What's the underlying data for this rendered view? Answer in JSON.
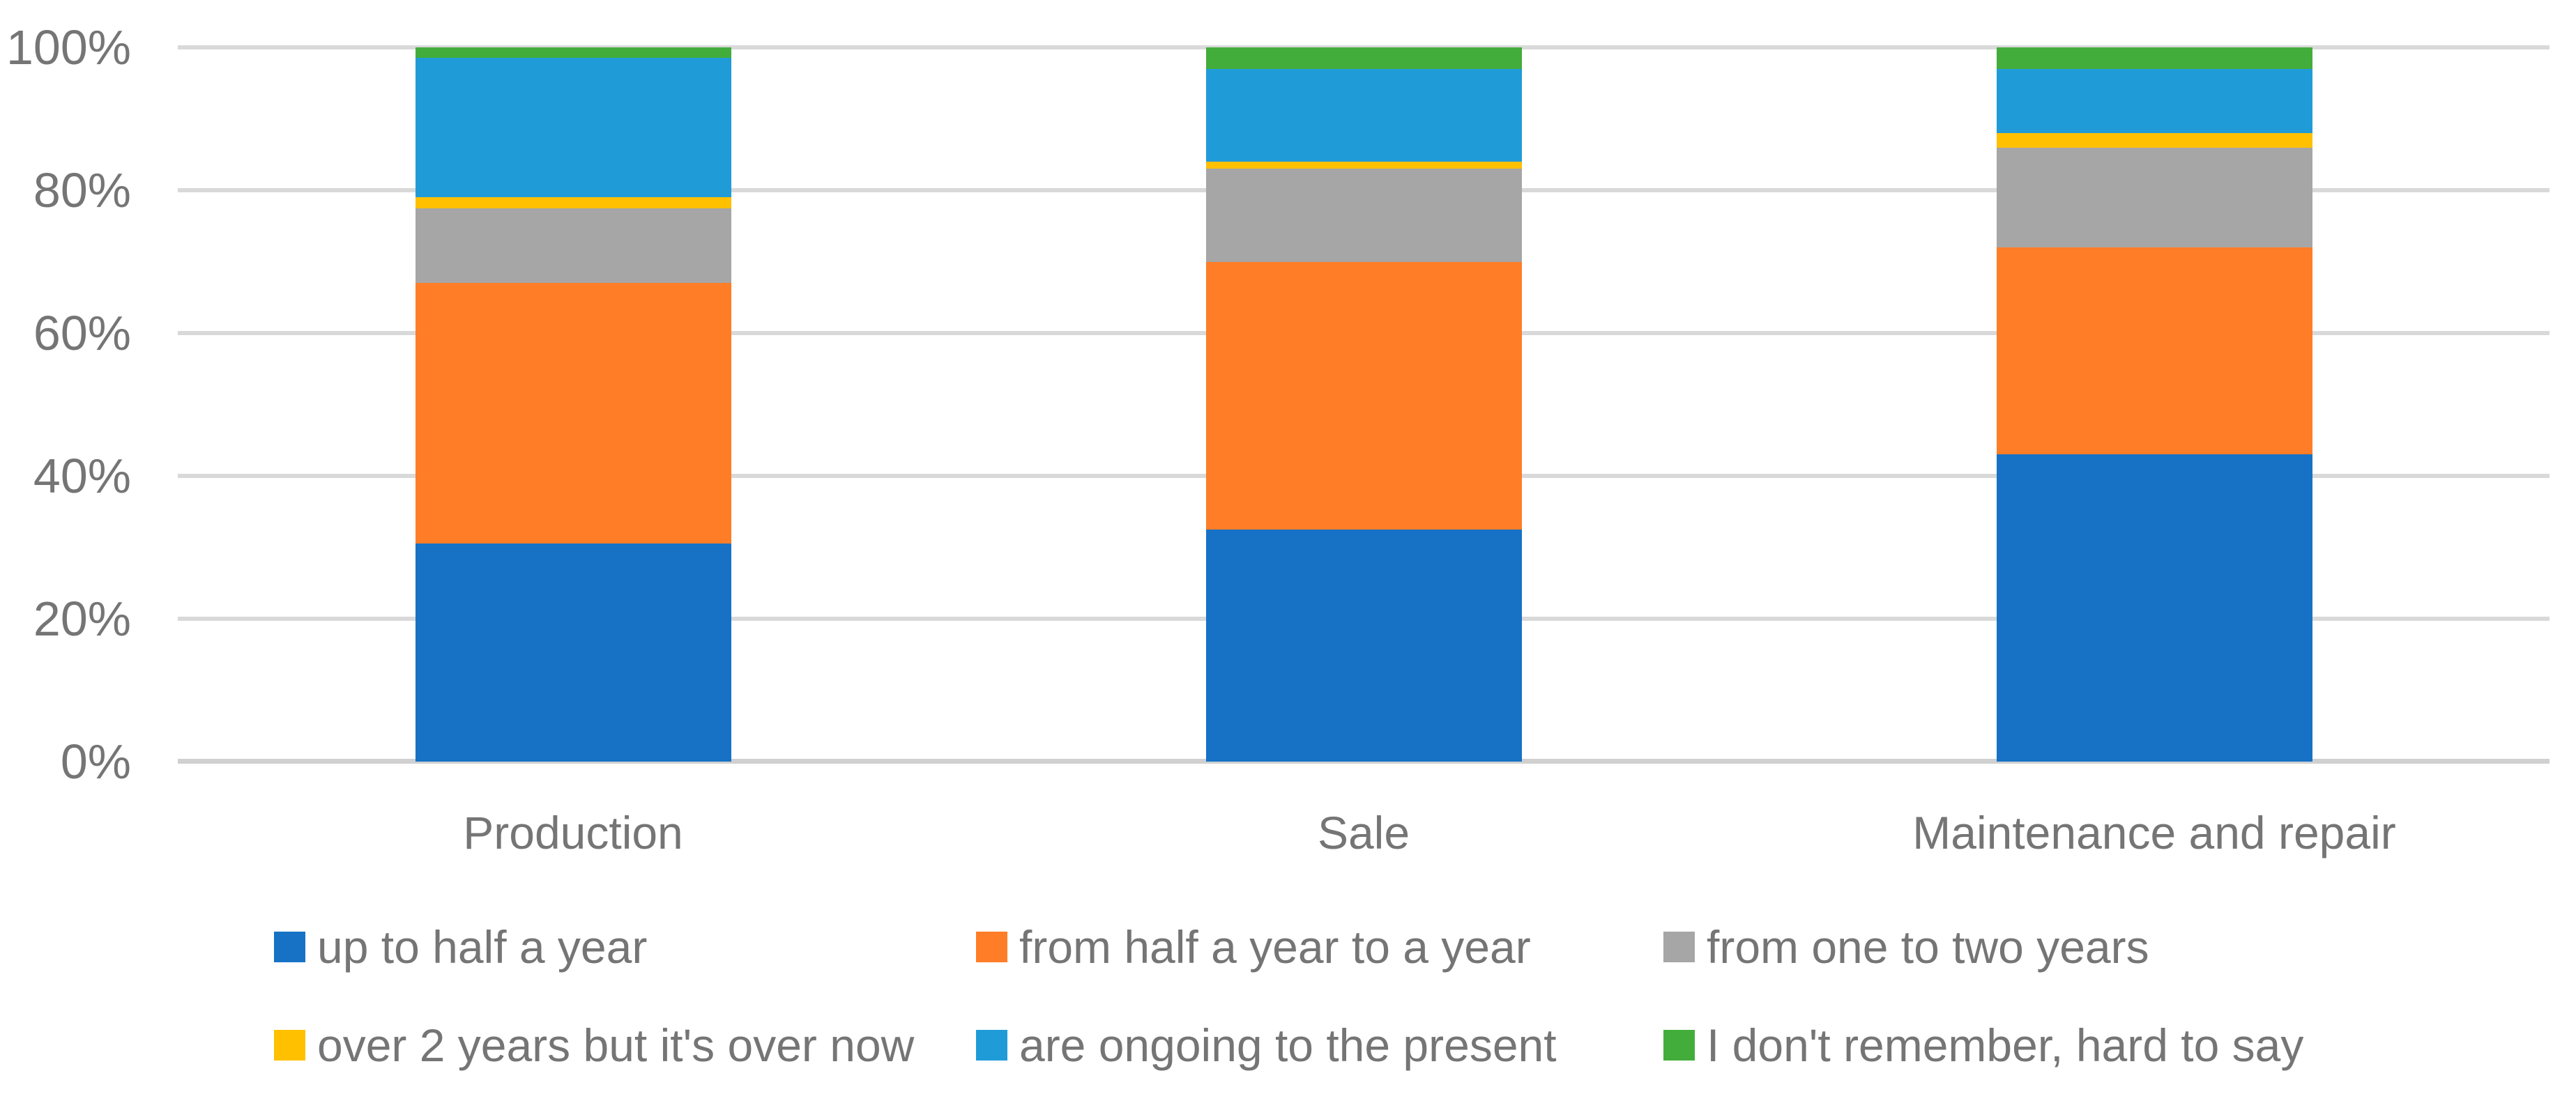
{
  "chart_data": {
    "type": "bar",
    "subtype": "stacked-100",
    "title": "",
    "xlabel": "",
    "ylabel": "",
    "units": "percent",
    "grid": true,
    "legend_position": "bottom",
    "legend_rows": 2,
    "legend_columns": 3,
    "ylim": [
      0,
      100
    ],
    "categories": [
      "Production",
      "Sale",
      "Maintenance and repair"
    ],
    "series": [
      {
        "name": "up to half a year",
        "color": "#1772C6",
        "values": [
          30.5,
          32.5,
          43
        ]
      },
      {
        "name": "from half a year to a year",
        "color": "#FF7D27",
        "values": [
          36.5,
          37.5,
          29
        ]
      },
      {
        "name": "from one to two years",
        "color": "#A6A6A6",
        "values": [
          10.5,
          13,
          14
        ]
      },
      {
        "name": "over 2 years but it's over now",
        "color": "#FFC000",
        "values": [
          1.5,
          1,
          2
        ]
      },
      {
        "name": "are ongoing to the present",
        "color": "#1F9CD8",
        "values": [
          19.5,
          13,
          9
        ]
      },
      {
        "name": "I don't remember, hard to say",
        "color": "#43AD3B",
        "values": [
          1.5,
          3,
          3
        ]
      }
    ],
    "y_ticks": [
      {
        "label": "0%",
        "value": 0
      },
      {
        "label": "20%",
        "value": 20
      },
      {
        "label": "40%",
        "value": 40
      },
      {
        "label": "60%",
        "value": 60
      },
      {
        "label": "80%",
        "value": 80
      },
      {
        "label": "100%",
        "value": 100
      }
    ],
    "colors": {
      "gridline": "#D9D9D9",
      "axis_line": "#D0D0D0",
      "text": "#757575",
      "background": "#FFFFFF"
    }
  }
}
